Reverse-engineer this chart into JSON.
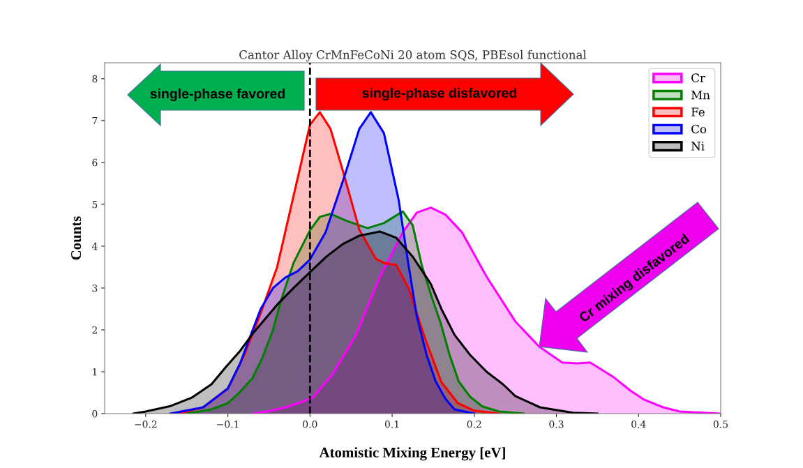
{
  "chart_data": {
    "type": "area",
    "title": "Cantor Alloy CrMnFeCoNi 20 atom SQS, PBEsol functional",
    "xlabel": "Atomistic Mixing Energy [eV]",
    "ylabel": "Counts",
    "xlim": [
      -0.25,
      0.5
    ],
    "xticks": [
      {
        "value": -0.2,
        "label": "−0.2"
      },
      {
        "value": -0.1,
        "label": "−0.1"
      },
      {
        "value": 0.0,
        "label": "0.0"
      },
      {
        "value": 0.1,
        "label": "0.1"
      },
      {
        "value": 0.2,
        "label": "0.2"
      },
      {
        "value": 0.3,
        "label": "0.3"
      },
      {
        "value": 0.4,
        "label": "0.4"
      },
      {
        "value": 0.5,
        "label": "0.5"
      }
    ],
    "ylim": [
      0,
      8.38
    ],
    "yticks": [
      0,
      1,
      2,
      3,
      4,
      5,
      6,
      7,
      8
    ],
    "legend": "top right",
    "series": [
      {
        "name": "Cr",
        "color": "#ff00ff",
        "x": [
          -0.07,
          -0.05,
          -0.03,
          -0.01,
          0.003,
          0.027,
          0.056,
          0.085,
          0.113,
          0.13,
          0.147,
          0.165,
          0.185,
          0.215,
          0.25,
          0.279,
          0.307,
          0.325,
          0.341,
          0.369,
          0.39,
          0.407,
          0.43,
          0.45,
          0.5
        ],
        "values": [
          0,
          0.06,
          0.15,
          0.28,
          0.38,
          0.93,
          1.88,
          3.27,
          4.33,
          4.8,
          4.92,
          4.75,
          4.33,
          3.27,
          2.2,
          1.6,
          1.22,
          1.2,
          1.22,
          0.88,
          0.55,
          0.33,
          0.15,
          0.05,
          0
        ]
      },
      {
        "name": "Mn",
        "color": "#007f00",
        "x": [
          -0.15,
          -0.12,
          -0.1,
          -0.086,
          -0.07,
          -0.058,
          -0.045,
          -0.035,
          -0.02,
          0.0,
          0.012,
          0.025,
          0.045,
          0.07,
          0.09,
          0.113,
          0.125,
          0.136,
          0.148,
          0.159,
          0.17,
          0.181,
          0.195,
          0.21,
          0.23,
          0.26
        ],
        "values": [
          0,
          0.1,
          0.25,
          0.5,
          0.85,
          1.33,
          2.0,
          2.72,
          3.6,
          4.38,
          4.7,
          4.77,
          4.6,
          4.43,
          4.55,
          4.83,
          4.5,
          3.55,
          2.8,
          2.17,
          1.4,
          0.77,
          0.4,
          0.17,
          0.05,
          0
        ]
      },
      {
        "name": "Fe",
        "color": "#ff0000",
        "x": [
          -0.16,
          -0.13,
          -0.1,
          -0.08,
          -0.06,
          -0.04,
          -0.02,
          0.0,
          0.012,
          0.025,
          0.04,
          0.06,
          0.08,
          0.09,
          0.105,
          0.12,
          0.14,
          0.16,
          0.18,
          0.2,
          0.23
        ],
        "values": [
          0,
          0.15,
          0.6,
          1.4,
          2.4,
          3.5,
          5.2,
          6.9,
          7.2,
          6.8,
          5.8,
          4.4,
          3.7,
          3.6,
          3.55,
          3.0,
          1.8,
          0.75,
          0.25,
          0.07,
          0
        ]
      },
      {
        "name": "Co",
        "color": "#0000ff",
        "x": [
          -0.17,
          -0.13,
          -0.1,
          -0.085,
          -0.072,
          -0.06,
          -0.045,
          -0.03,
          -0.015,
          0.0,
          0.019,
          0.042,
          0.06,
          0.074,
          0.09,
          0.108,
          0.119,
          0.13,
          0.142,
          0.153,
          0.165,
          0.176,
          0.2
        ],
        "values": [
          0,
          0.15,
          0.6,
          1.2,
          1.88,
          2.5,
          3.0,
          3.25,
          3.4,
          3.68,
          4.33,
          5.67,
          6.8,
          7.2,
          6.7,
          5.1,
          3.67,
          2.33,
          1.4,
          0.77,
          0.35,
          0.1,
          0
        ]
      },
      {
        "name": "Ni",
        "color": "#000000",
        "x": [
          -0.215,
          -0.2,
          -0.17,
          -0.144,
          -0.12,
          -0.103,
          -0.085,
          -0.069,
          -0.04,
          -0.02,
          0.0,
          0.02,
          0.04,
          0.06,
          0.085,
          0.105,
          0.125,
          0.147,
          0.16,
          0.176,
          0.195,
          0.215,
          0.235,
          0.25,
          0.28,
          0.32,
          0.35
        ],
        "values": [
          0,
          0.05,
          0.18,
          0.38,
          0.7,
          1.1,
          1.5,
          1.93,
          2.6,
          3.0,
          3.38,
          3.75,
          4.05,
          4.25,
          4.35,
          4.2,
          3.75,
          3.1,
          2.5,
          1.88,
          1.4,
          1.0,
          0.7,
          0.42,
          0.15,
          0.02,
          0
        ]
      }
    ],
    "ref_lines": [
      {
        "axis": "x",
        "value": 0.0,
        "color": "#000000",
        "line_style": "dashed"
      }
    ],
    "annotations": [
      "single-phase favored",
      "single-phase disfavored",
      "Cr mixing disfavored"
    ]
  }
}
